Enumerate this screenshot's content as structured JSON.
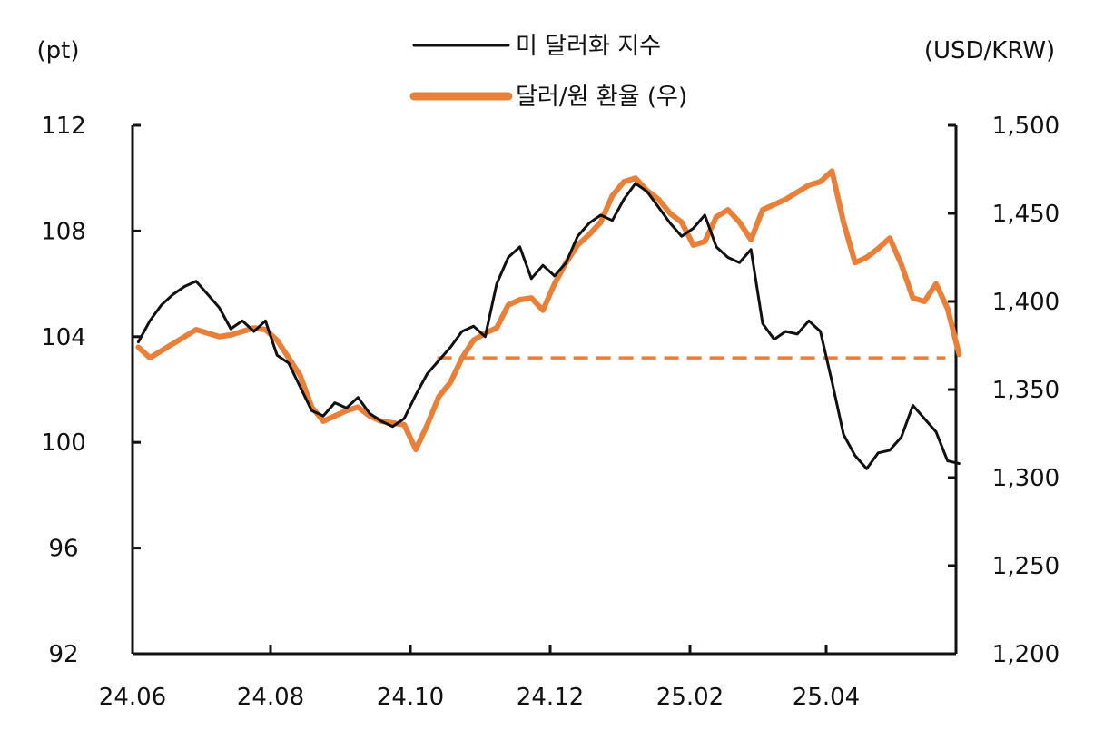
{
  "chart_data": {
    "type": "line",
    "left_axis": {
      "unit": "(pt)",
      "ylim": [
        92,
        112
      ],
      "ticks": [
        "112",
        "108",
        "104",
        "100",
        "96",
        "92"
      ]
    },
    "right_axis": {
      "unit": "(USD/KRW)",
      "ylim": [
        1200,
        1500
      ],
      "ticks": [
        "1,500",
        "1,450",
        "1,400",
        "1,350",
        "1,300",
        "1,250",
        "1,200"
      ]
    },
    "x_axis": {
      "ticks": [
        "24.06",
        "24.08",
        "24.10",
        "24.12",
        "25.02",
        "25.04"
      ]
    },
    "grid": false,
    "legend_position": "top-center",
    "reference_line": {
      "axis": "right",
      "value": 1368,
      "from": "24.10",
      "to": "25.05",
      "style": "dashed",
      "color": "#e8803a"
    },
    "series": [
      {
        "name": "미 달러화 지수",
        "axis": "left",
        "color": "#111111",
        "points": [
          [
            "24.06",
            103.8
          ],
          [
            "24.06",
            104.6
          ],
          [
            "24.06",
            105.2
          ],
          [
            "24.06",
            105.6
          ],
          [
            "24.06",
            105.9
          ],
          [
            "24.06",
            106.1
          ],
          [
            "24.07",
            105.6
          ],
          [
            "24.07",
            105.1
          ],
          [
            "24.07",
            104.3
          ],
          [
            "24.07",
            104.6
          ],
          [
            "24.07",
            104.2
          ],
          [
            "24.07",
            104.6
          ],
          [
            "24.08",
            103.3
          ],
          [
            "24.08",
            103.0
          ],
          [
            "24.08",
            102.1
          ],
          [
            "24.08",
            101.2
          ],
          [
            "24.08",
            101.0
          ],
          [
            "24.08",
            101.5
          ],
          [
            "24.09",
            101.3
          ],
          [
            "24.09",
            101.7
          ],
          [
            "24.09",
            101.1
          ],
          [
            "24.09",
            100.8
          ],
          [
            "24.09",
            100.6
          ],
          [
            "24.09",
            100.9
          ],
          [
            "24.10",
            101.8
          ],
          [
            "24.10",
            102.6
          ],
          [
            "24.10",
            103.1
          ],
          [
            "24.10",
            103.6
          ],
          [
            "24.10",
            104.2
          ],
          [
            "24.10",
            104.4
          ],
          [
            "24.11",
            104.0
          ],
          [
            "24.11",
            106.0
          ],
          [
            "24.11",
            107.0
          ],
          [
            "24.11",
            107.4
          ],
          [
            "24.11",
            106.2
          ],
          [
            "24.11",
            106.7
          ],
          [
            "24.12",
            106.3
          ],
          [
            "24.12",
            106.8
          ],
          [
            "24.12",
            107.8
          ],
          [
            "24.12",
            108.3
          ],
          [
            "24.12",
            108.6
          ],
          [
            "24.12",
            108.4
          ],
          [
            "25.01",
            109.2
          ],
          [
            "25.01",
            109.8
          ],
          [
            "25.01",
            109.5
          ],
          [
            "25.01",
            108.9
          ],
          [
            "25.01",
            108.3
          ],
          [
            "25.01",
            107.8
          ],
          [
            "25.02",
            108.1
          ],
          [
            "25.02",
            108.6
          ],
          [
            "25.02",
            107.4
          ],
          [
            "25.02",
            107.0
          ],
          [
            "25.02",
            106.8
          ],
          [
            "25.02",
            107.3
          ],
          [
            "25.03",
            104.5
          ],
          [
            "25.03",
            103.9
          ],
          [
            "25.03",
            104.2
          ],
          [
            "25.03",
            104.1
          ],
          [
            "25.03",
            104.6
          ],
          [
            "25.03",
            104.2
          ],
          [
            "25.04",
            102.3
          ],
          [
            "25.04",
            100.3
          ],
          [
            "25.04",
            99.5
          ],
          [
            "25.04",
            99.0
          ],
          [
            "25.04",
            99.6
          ],
          [
            "25.04",
            99.7
          ],
          [
            "25.05",
            100.2
          ],
          [
            "25.05",
            101.4
          ],
          [
            "25.05",
            100.9
          ],
          [
            "25.05",
            100.4
          ],
          [
            "25.05",
            99.3
          ],
          [
            "25.05",
            99.2
          ]
        ]
      },
      {
        "name": "달러/원 환율 (우)",
        "axis": "right",
        "color": "#e8803a",
        "points": [
          [
            "24.06",
            1374
          ],
          [
            "24.06",
            1368
          ],
          [
            "24.06",
            1372
          ],
          [
            "24.06",
            1376
          ],
          [
            "24.06",
            1380
          ],
          [
            "24.06",
            1384
          ],
          [
            "24.07",
            1382
          ],
          [
            "24.07",
            1380
          ],
          [
            "24.07",
            1381
          ],
          [
            "24.07",
            1383
          ],
          [
            "24.07",
            1385
          ],
          [
            "24.07",
            1384
          ],
          [
            "24.08",
            1378
          ],
          [
            "24.08",
            1368
          ],
          [
            "24.08",
            1358
          ],
          [
            "24.08",
            1340
          ],
          [
            "24.08",
            1332
          ],
          [
            "24.08",
            1335
          ],
          [
            "24.09",
            1338
          ],
          [
            "24.09",
            1340
          ],
          [
            "24.09",
            1335
          ],
          [
            "24.09",
            1332
          ],
          [
            "24.09",
            1331
          ],
          [
            "24.09",
            1330
          ],
          [
            "24.10",
            1316
          ],
          [
            "24.10",
            1330
          ],
          [
            "24.10",
            1346
          ],
          [
            "24.10",
            1354
          ],
          [
            "24.10",
            1368
          ],
          [
            "24.10",
            1378
          ],
          [
            "24.11",
            1382
          ],
          [
            "24.11",
            1385
          ],
          [
            "24.11",
            1398
          ],
          [
            "24.11",
            1401
          ],
          [
            "24.11",
            1402
          ],
          [
            "24.11",
            1395
          ],
          [
            "24.12",
            1410
          ],
          [
            "24.12",
            1422
          ],
          [
            "24.12",
            1432
          ],
          [
            "24.12",
            1438
          ],
          [
            "24.12",
            1445
          ],
          [
            "24.12",
            1460
          ],
          [
            "25.01",
            1468
          ],
          [
            "25.01",
            1470
          ],
          [
            "25.01",
            1463
          ],
          [
            "25.01",
            1458
          ],
          [
            "25.01",
            1450
          ],
          [
            "25.01",
            1445
          ],
          [
            "25.02",
            1432
          ],
          [
            "25.02",
            1434
          ],
          [
            "25.02",
            1448
          ],
          [
            "25.02",
            1452
          ],
          [
            "25.02",
            1445
          ],
          [
            "25.02",
            1435
          ],
          [
            "25.03",
            1452
          ],
          [
            "25.03",
            1455
          ],
          [
            "25.03",
            1458
          ],
          [
            "25.03",
            1462
          ],
          [
            "25.03",
            1466
          ],
          [
            "25.03",
            1468
          ],
          [
            "25.04",
            1474
          ],
          [
            "25.04",
            1445
          ],
          [
            "25.04",
            1422
          ],
          [
            "25.04",
            1425
          ],
          [
            "25.04",
            1430
          ],
          [
            "25.04",
            1436
          ],
          [
            "25.05",
            1421
          ],
          [
            "25.05",
            1402
          ],
          [
            "25.05",
            1400
          ],
          [
            "25.05",
            1410
          ],
          [
            "25.05",
            1396
          ],
          [
            "25.05",
            1370
          ]
        ]
      }
    ]
  }
}
